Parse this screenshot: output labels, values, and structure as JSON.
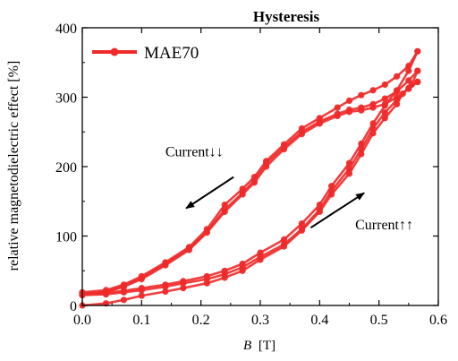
{
  "chart_data": {
    "type": "line",
    "title": "Hysteresis",
    "xlabel_var": "B",
    "xlabel_unit": "[T]",
    "ylabel": "relative magnetodielectric effect [%]",
    "xlim": [
      0.0,
      0.6
    ],
    "ylim": [
      0,
      400
    ],
    "xticks": [
      0.0,
      0.1,
      0.2,
      0.3,
      0.4,
      0.5,
      0.6
    ],
    "xtick_labels": [
      "0.0",
      "0.1",
      "0.2",
      "0.3",
      "0.4",
      "0.5",
      "0.6"
    ],
    "yticks": [
      0,
      100,
      200,
      300,
      400
    ],
    "ytick_labels": [
      "0",
      "100",
      "200",
      "300",
      "400"
    ],
    "grid": false,
    "legend_position": "top-left",
    "color": "#ee2a2a",
    "series": [
      {
        "name": "MAE70",
        "curves": [
          {
            "points": [
              [
                0.0,
                0
              ],
              [
                0.04,
                3
              ],
              [
                0.07,
                8
              ],
              [
                0.1,
                14
              ],
              [
                0.14,
                20
              ],
              [
                0.17,
                25
              ],
              [
                0.21,
                32
              ],
              [
                0.24,
                40
              ],
              [
                0.27,
                50
              ],
              [
                0.3,
                66
              ],
              [
                0.34,
                85
              ],
              [
                0.37,
                108
              ],
              [
                0.4,
                135
              ],
              [
                0.42,
                160
              ],
              [
                0.45,
                190
              ],
              [
                0.47,
                218
              ],
              [
                0.49,
                248
              ],
              [
                0.51,
                270
              ],
              [
                0.53,
                290
              ],
              [
                0.54,
                305
              ],
              [
                0.555,
                318
              ],
              [
                0.565,
                338
              ]
            ]
          },
          {
            "points": [
              [
                0.565,
                338
              ],
              [
                0.55,
                324
              ],
              [
                0.53,
                308
              ],
              [
                0.51,
                298
              ],
              [
                0.49,
                290
              ],
              [
                0.47,
                285
              ],
              [
                0.45,
                282
              ],
              [
                0.43,
                276
              ],
              [
                0.4,
                265
              ],
              [
                0.37,
                250
              ],
              [
                0.34,
                228
              ],
              [
                0.31,
                205
              ],
              [
                0.29,
                180
              ],
              [
                0.27,
                162
              ],
              [
                0.24,
                138
              ],
              [
                0.21,
                106
              ],
              [
                0.18,
                82
              ],
              [
                0.14,
                60
              ],
              [
                0.1,
                40
              ],
              [
                0.07,
                28
              ],
              [
                0.04,
                20
              ],
              [
                0.0,
                15
              ]
            ]
          },
          {
            "points": [
              [
                0.0,
                15
              ],
              [
                0.04,
                16
              ],
              [
                0.07,
                19
              ],
              [
                0.1,
                22
              ],
              [
                0.14,
                27
              ],
              [
                0.17,
                32
              ],
              [
                0.21,
                38
              ],
              [
                0.24,
                45
              ],
              [
                0.27,
                55
              ],
              [
                0.3,
                70
              ],
              [
                0.34,
                88
              ],
              [
                0.37,
                110
              ],
              [
                0.4,
                138
              ],
              [
                0.42,
                165
              ],
              [
                0.45,
                197
              ],
              [
                0.47,
                225
              ],
              [
                0.49,
                255
              ],
              [
                0.51,
                278
              ],
              [
                0.53,
                296
              ],
              [
                0.55,
                313
              ],
              [
                0.565,
                322
              ]
            ]
          },
          {
            "points": [
              [
                0.565,
                322
              ],
              [
                0.55,
                312
              ],
              [
                0.53,
                300
              ],
              [
                0.51,
                290
              ],
              [
                0.49,
                285
              ],
              [
                0.47,
                281
              ],
              [
                0.45,
                279
              ],
              [
                0.43,
                273
              ],
              [
                0.4,
                262
              ],
              [
                0.37,
                247
              ],
              [
                0.34,
                225
              ],
              [
                0.31,
                200
              ],
              [
                0.29,
                177
              ],
              [
                0.27,
                160
              ],
              [
                0.24,
                135
              ],
              [
                0.21,
                105
              ],
              [
                0.18,
                80
              ],
              [
                0.14,
                58
              ],
              [
                0.1,
                38
              ],
              [
                0.07,
                27
              ],
              [
                0.04,
                19
              ],
              [
                0.0,
                17
              ]
            ]
          },
          {
            "points": [
              [
                0.0,
                17
              ],
              [
                0.04,
                18
              ],
              [
                0.07,
                21
              ],
              [
                0.1,
                25
              ],
              [
                0.14,
                30
              ],
              [
                0.17,
                35
              ],
              [
                0.21,
                42
              ],
              [
                0.24,
                50
              ],
              [
                0.27,
                60
              ],
              [
                0.3,
                76
              ],
              [
                0.34,
                95
              ],
              [
                0.37,
                118
              ],
              [
                0.4,
                145
              ],
              [
                0.42,
                172
              ],
              [
                0.45,
                205
              ],
              [
                0.47,
                233
              ],
              [
                0.49,
                262
              ],
              [
                0.51,
                288
              ],
              [
                0.53,
                310
              ],
              [
                0.55,
                338
              ],
              [
                0.565,
                366
              ]
            ]
          },
          {
            "points": [
              [
                0.565,
                366
              ],
              [
                0.55,
                345
              ],
              [
                0.53,
                330
              ],
              [
                0.51,
                318
              ],
              [
                0.49,
                310
              ],
              [
                0.47,
                303
              ],
              [
                0.45,
                295
              ],
              [
                0.43,
                285
              ],
              [
                0.4,
                270
              ],
              [
                0.37,
                255
              ],
              [
                0.34,
                232
              ],
              [
                0.31,
                208
              ],
              [
                0.29,
                185
              ],
              [
                0.27,
                168
              ],
              [
                0.24,
                145
              ],
              [
                0.21,
                110
              ],
              [
                0.18,
                84
              ],
              [
                0.14,
                62
              ],
              [
                0.1,
                42
              ],
              [
                0.07,
                30
              ],
              [
                0.04,
                22
              ],
              [
                0.0,
                19
              ]
            ]
          }
        ]
      }
    ],
    "annotations": [
      {
        "text": "Current↓↓",
        "x": 0.14,
        "y": 215
      },
      {
        "text": "Current↑↑",
        "x": 0.46,
        "y": 110
      }
    ],
    "arrows": [
      {
        "from": [
          0.255,
          185
        ],
        "to": [
          0.175,
          140
        ]
      },
      {
        "from": [
          0.385,
          112
        ],
        "to": [
          0.475,
          162
        ]
      }
    ]
  }
}
